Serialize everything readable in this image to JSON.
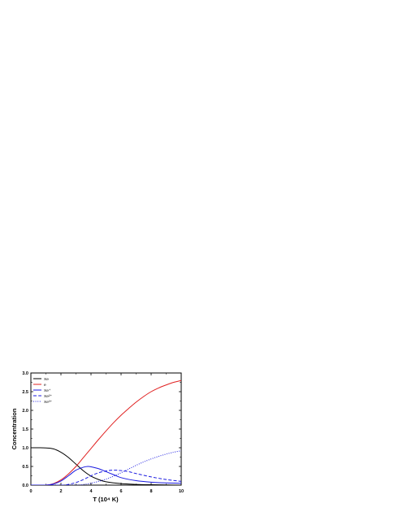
{
  "chart_data": {
    "type": "line",
    "xlabel": "T (10⁴ K)",
    "ylabel": "Concentration",
    "xlim": [
      0,
      10
    ],
    "ylim": [
      0,
      3.0
    ],
    "xticks": [
      "0",
      "2",
      "4",
      "6",
      "8",
      "10"
    ],
    "yticks": [
      "0.0",
      "0.5",
      "1.0",
      "1.5",
      "2.0",
      "2.5",
      "3.0"
    ],
    "legend_position": "top-left",
    "grid": false,
    "series": [
      {
        "name": "Xe",
        "color": "#000000",
        "style": "solid",
        "x": [
          0,
          0.5,
          1,
          1.5,
          2,
          2.5,
          3,
          3.5,
          4,
          4.5,
          5,
          6,
          7,
          8,
          9,
          10
        ],
        "y": [
          1.0,
          1.0,
          0.995,
          0.97,
          0.88,
          0.74,
          0.56,
          0.38,
          0.24,
          0.15,
          0.09,
          0.04,
          0.02,
          0.01,
          0.005,
          0.0
        ]
      },
      {
        "name": "e",
        "color": "#e02020",
        "style": "solid",
        "x": [
          0,
          1,
          1.5,
          2,
          2.5,
          3,
          3.5,
          4,
          4.5,
          5,
          5.5,
          6,
          6.5,
          7,
          7.5,
          8,
          8.5,
          9,
          9.5,
          10
        ],
        "y": [
          0.0,
          0.0,
          0.04,
          0.14,
          0.3,
          0.5,
          0.74,
          0.98,
          1.22,
          1.45,
          1.67,
          1.87,
          2.05,
          2.22,
          2.37,
          2.5,
          2.6,
          2.68,
          2.75,
          2.8
        ]
      },
      {
        "name": "Xe⁺",
        "color": "#1a1ae0",
        "style": "solid",
        "x": [
          0,
          1,
          1.5,
          2,
          2.5,
          3,
          3.5,
          3.8,
          4,
          4.5,
          5,
          5.5,
          6,
          7,
          8,
          9,
          10
        ],
        "y": [
          0.0,
          0.0,
          0.03,
          0.11,
          0.25,
          0.4,
          0.48,
          0.5,
          0.49,
          0.44,
          0.36,
          0.28,
          0.2,
          0.12,
          0.08,
          0.06,
          0.05
        ]
      },
      {
        "name": "Xe²⁺",
        "color": "#1a1ae0",
        "style": "dashed",
        "x": [
          0,
          2,
          2.5,
          3,
          3.5,
          4,
          4.5,
          5,
          5.5,
          6,
          6.5,
          7,
          8,
          9,
          10
        ],
        "y": [
          0.0,
          0.0,
          0.02,
          0.07,
          0.15,
          0.25,
          0.33,
          0.38,
          0.4,
          0.39,
          0.36,
          0.31,
          0.22,
          0.15,
          0.1
        ]
      },
      {
        "name": "Xe³⁺",
        "color": "#1a1ae0",
        "style": "dotted",
        "x": [
          0,
          3,
          3.5,
          4,
          4.5,
          5,
          5.5,
          6,
          6.5,
          7,
          7.5,
          8,
          8.5,
          9,
          9.5,
          10
        ],
        "y": [
          0.0,
          0.0,
          0.02,
          0.05,
          0.1,
          0.16,
          0.24,
          0.33,
          0.43,
          0.53,
          0.62,
          0.7,
          0.77,
          0.83,
          0.88,
          0.92
        ]
      }
    ]
  }
}
